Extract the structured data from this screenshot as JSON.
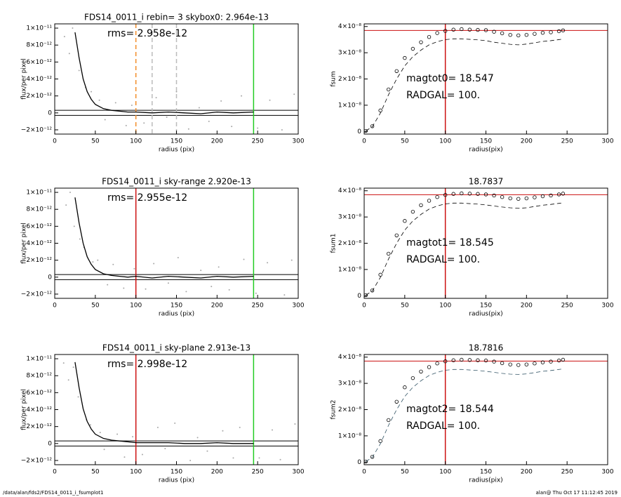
{
  "chart_data": [
    {
      "type": "scatter",
      "title": "FDS14_0011_i rebin= 3    skybox0:  2.964e-13",
      "annotations": [
        "rms= 2.958e-12"
      ],
      "xlabel": "radius (pix)",
      "ylabel": "flux/per pixel",
      "xlim": [
        0,
        300
      ],
      "xticks": [
        0,
        50,
        100,
        150,
        200,
        250,
        300
      ],
      "ylim": [
        -2.5e-12,
        1.05e-11
      ],
      "yticks": [
        {
          "value": -2e-12,
          "label": "−2×10⁻¹²"
        },
        0,
        {
          "value": 2e-12,
          "label": "2×10⁻¹²"
        },
        {
          "value": 4e-12,
          "label": "4×10⁻¹²"
        },
        {
          "value": 6e-12,
          "label": "6×10⁻¹²"
        },
        {
          "value": 8e-12,
          "label": "8×10⁻¹²"
        },
        {
          "value": 1e-11,
          "label": "1×10⁻¹¹"
        }
      ],
      "points": {
        "color": "#a8a8a8",
        "x": [
          12,
          18,
          22,
          30,
          38,
          45,
          55,
          62,
          75,
          88,
          95,
          110,
          125,
          138,
          150,
          165,
          178,
          190,
          205,
          218,
          230,
          250,
          265,
          280,
          295
        ],
        "y": [
          9e-12,
          7e-12,
          1e-11,
          5e-12,
          3e-12,
          2.5e-12,
          1.5e-12,
          -8e-13,
          1.2e-12,
          -1.5e-12,
          9e-13,
          -1.2e-12,
          1.8e-12,
          -5e-13,
          2.5e-12,
          -1.9e-12,
          6e-13,
          -1e-12,
          1.4e-12,
          -1.6e-12,
          2e-12,
          -1.8e-12,
          1.5e-12,
          -2e-12,
          2.2e-12
        ]
      },
      "series": [
        {
          "color": "#000000",
          "x": [
            25,
            30,
            35,
            40,
            45,
            50,
            60,
            70,
            80,
            90,
            100,
            120,
            140,
            160,
            180,
            200,
            220,
            245
          ],
          "values": [
            9.5e-12,
            6.5e-12,
            4e-12,
            2.5e-12,
            1.6e-12,
            1e-12,
            5e-13,
            3e-13,
            2e-13,
            1e-13,
            1e-13,
            0,
            1e-13,
            0,
            -1e-13,
            1e-13,
            0,
            1e-13
          ]
        }
      ],
      "vlines": [
        {
          "x": 100,
          "color": "#f28c28",
          "dash": true
        },
        {
          "x": 120,
          "color": "#bbbbbb",
          "dash": true
        },
        {
          "x": 150,
          "color": "#bbbbbb",
          "dash": true
        },
        {
          "x": 245,
          "color": "#22cc22"
        }
      ],
      "hlines": [
        {
          "y": 3e-13,
          "color": "#000000"
        },
        {
          "y": -3e-13,
          "color": "#000000"
        }
      ]
    },
    {
      "type": "line",
      "annotations": [
        "magtot0= 18.547",
        "RADGAL=    100."
      ],
      "xlabel": "radius(pix)",
      "ylabel": "fsum",
      "xlim": [
        0,
        300
      ],
      "xticks": [
        0,
        50,
        100,
        150,
        200,
        250,
        300
      ],
      "ylim": [
        -1e-09,
        4.1e-08
      ],
      "yticks": [
        0,
        {
          "value": 1e-08,
          "label": "1×10⁻⁸"
        },
        {
          "value": 2e-08,
          "label": "2×10⁻⁸"
        },
        {
          "value": 3e-08,
          "label": "3×10⁻⁸"
        },
        {
          "value": 4e-08,
          "label": "4×10⁻⁸"
        }
      ],
      "series": [
        {
          "color": "#000000",
          "marker": "circle",
          "x": [
            2,
            10,
            20,
            30,
            40,
            50,
            60,
            70,
            80,
            90,
            100,
            110,
            120,
            130,
            140,
            150,
            160,
            170,
            180,
            190,
            200,
            210,
            220,
            230,
            240,
            245
          ],
          "values": [
            2e-10,
            2e-09,
            8e-09,
            1.6e-08,
            2.3e-08,
            2.8e-08,
            3.15e-08,
            3.4e-08,
            3.6e-08,
            3.75e-08,
            3.83e-08,
            3.88e-08,
            3.9e-08,
            3.88e-08,
            3.87e-08,
            3.86e-08,
            3.8e-08,
            3.74e-08,
            3.68e-08,
            3.66e-08,
            3.68e-08,
            3.72e-08,
            3.76e-08,
            3.78e-08,
            3.82e-08,
            3.85e-08
          ]
        },
        {
          "color": "#000000",
          "dash": true,
          "x": [
            2,
            10,
            20,
            30,
            40,
            50,
            60,
            70,
            80,
            90,
            100,
            110,
            120,
            130,
            140,
            150,
            160,
            170,
            180,
            190,
            200,
            210,
            220,
            230,
            240,
            245
          ],
          "values": [
            2e-10,
            1.8e-09,
            7e-09,
            1.4e-08,
            2e-08,
            2.5e-08,
            2.85e-08,
            3.1e-08,
            3.3e-08,
            3.42e-08,
            3.5e-08,
            3.53e-08,
            3.53e-08,
            3.51e-08,
            3.49e-08,
            3.46e-08,
            3.4e-08,
            3.36e-08,
            3.32e-08,
            3.3e-08,
            3.33e-08,
            3.38e-08,
            3.43e-08,
            3.46e-08,
            3.5e-08,
            3.52e-08
          ]
        }
      ],
      "vlines": [
        {
          "x": 100,
          "color": "#cc1111"
        }
      ],
      "hlines": [
        {
          "y": 3.85e-08,
          "color": "#cc1111"
        }
      ]
    },
    {
      "type": "scatter",
      "title": "FDS14_0011_i sky-range  2.920e-13",
      "annotations": [
        "rms= 2.955e-12"
      ],
      "xlabel": "radius (pix)",
      "ylabel": "flux/per pixel",
      "xlim": [
        0,
        300
      ],
      "xticks": [
        0,
        50,
        100,
        150,
        200,
        250,
        300
      ],
      "ylim": [
        -2.5e-12,
        1.05e-11
      ],
      "yticks": [
        {
          "value": -2e-12,
          "label": "−2×10⁻¹²"
        },
        0,
        {
          "value": 2e-12,
          "label": "2×10⁻¹²"
        },
        {
          "value": 4e-12,
          "label": "4×10⁻¹²"
        },
        {
          "value": 6e-12,
          "label": "6×10⁻¹²"
        },
        {
          "value": 8e-12,
          "label": "8×10⁻¹²"
        },
        {
          "value": 1e-11,
          "label": "1×10⁻¹¹"
        }
      ],
      "points": {
        "color": "#a8a8a8",
        "x": [
          14,
          19,
          24,
          31,
          36,
          47,
          53,
          65,
          72,
          85,
          98,
          112,
          122,
          140,
          152,
          162,
          180,
          193,
          202,
          215,
          233,
          248,
          262,
          283,
          292
        ],
        "y": [
          8.5e-12,
          1e-11,
          6e-12,
          4.5e-12,
          3.5e-12,
          1.8e-12,
          2e-12,
          -9e-13,
          1.5e-12,
          -1.3e-12,
          1e-12,
          -1.4e-12,
          1.6e-12,
          -7e-13,
          2.3e-12,
          -1.7e-12,
          8e-13,
          -1.1e-12,
          1.2e-12,
          -1.5e-12,
          2.1e-12,
          -1.9e-12,
          1.7e-12,
          -2.1e-12,
          2e-12
        ]
      },
      "series": [
        {
          "color": "#000000",
          "x": [
            25,
            30,
            35,
            40,
            45,
            50,
            60,
            70,
            80,
            90,
            100,
            120,
            140,
            160,
            180,
            200,
            220,
            245
          ],
          "values": [
            9.4e-12,
            6.4e-12,
            4e-12,
            2.4e-12,
            1.5e-12,
            9e-13,
            4e-13,
            2e-13,
            1e-13,
            0,
            1e-13,
            -1e-13,
            1e-13,
            0,
            -1e-13,
            1e-13,
            0,
            1e-13
          ]
        }
      ],
      "vlines": [
        {
          "x": 100,
          "color": "#cc1111"
        },
        {
          "x": 245,
          "color": "#22cc22"
        }
      ],
      "hlines": [
        {
          "y": 3e-13,
          "color": "#000000"
        },
        {
          "y": -3e-13,
          "color": "#000000"
        }
      ]
    },
    {
      "type": "line",
      "title": "18.7837",
      "annotations": [
        "magtot1= 18.545",
        "RADGAL=    100."
      ],
      "xlabel": "radius(pix)",
      "ylabel": "fsum1",
      "xlim": [
        0,
        300
      ],
      "xticks": [
        0,
        50,
        100,
        150,
        200,
        250,
        300
      ],
      "ylim": [
        -1e-09,
        4.1e-08
      ],
      "yticks": [
        0,
        {
          "value": 1e-08,
          "label": "1×10⁻⁸"
        },
        {
          "value": 2e-08,
          "label": "2×10⁻⁸"
        },
        {
          "value": 3e-08,
          "label": "3×10⁻⁸"
        },
        {
          "value": 4e-08,
          "label": "4×10⁻⁸"
        }
      ],
      "series": [
        {
          "color": "#000000",
          "marker": "circle",
          "x": [
            2,
            10,
            20,
            30,
            40,
            50,
            60,
            70,
            80,
            90,
            100,
            110,
            120,
            130,
            140,
            150,
            160,
            170,
            180,
            190,
            200,
            210,
            220,
            230,
            240,
            245
          ],
          "values": [
            2e-10,
            2e-09,
            8e-09,
            1.6e-08,
            2.3e-08,
            2.85e-08,
            3.2e-08,
            3.45e-08,
            3.62e-08,
            3.76e-08,
            3.84e-08,
            3.88e-08,
            3.9e-08,
            3.89e-08,
            3.88e-08,
            3.86e-08,
            3.82e-08,
            3.76e-08,
            3.71e-08,
            3.69e-08,
            3.71e-08,
            3.75e-08,
            3.79e-08,
            3.82e-08,
            3.86e-08,
            3.89e-08
          ]
        },
        {
          "color": "#000000",
          "dash": true,
          "x": [
            2,
            10,
            20,
            30,
            40,
            50,
            60,
            70,
            80,
            90,
            100,
            110,
            120,
            130,
            140,
            150,
            160,
            170,
            180,
            190,
            200,
            210,
            220,
            230,
            240,
            245
          ],
          "values": [
            2e-10,
            1.8e-09,
            7e-09,
            1.4e-08,
            2e-08,
            2.5e-08,
            2.85e-08,
            3.1e-08,
            3.3e-08,
            3.42e-08,
            3.5e-08,
            3.53e-08,
            3.53e-08,
            3.51e-08,
            3.49e-08,
            3.46e-08,
            3.42e-08,
            3.38e-08,
            3.35e-08,
            3.33e-08,
            3.35e-08,
            3.4e-08,
            3.45e-08,
            3.48e-08,
            3.52e-08,
            3.54e-08
          ]
        }
      ],
      "vlines": [
        {
          "x": 100,
          "color": "#cc1111"
        }
      ],
      "hlines": [
        {
          "y": 3.85e-08,
          "color": "#cc1111"
        }
      ]
    },
    {
      "type": "scatter",
      "title": "FDS14_0011_i sky-plane 2.913e-13",
      "annotations": [
        "rms= 2.998e-12"
      ],
      "xlabel": "radius (pix)",
      "ylabel": "flux/per pixel",
      "xlim": [
        0,
        300
      ],
      "xticks": [
        0,
        50,
        100,
        150,
        200,
        250,
        300
      ],
      "ylim": [
        -2.5e-12,
        1.05e-11
      ],
      "yticks": [
        {
          "value": -2e-12,
          "label": "−2×10⁻¹²"
        },
        0,
        {
          "value": 2e-12,
          "label": "2×10⁻¹²"
        },
        {
          "value": 4e-12,
          "label": "4×10⁻¹²"
        },
        {
          "value": 6e-12,
          "label": "6×10⁻¹²"
        },
        {
          "value": 8e-12,
          "label": "8×10⁻¹²"
        },
        {
          "value": 1e-11,
          "label": "1×10⁻¹¹"
        }
      ],
      "points": {
        "color": "#a8a8a8",
        "x": [
          11,
          17,
          23,
          29,
          39,
          44,
          56,
          61,
          77,
          86,
          96,
          108,
          127,
          136,
          148,
          167,
          176,
          188,
          207,
          220,
          228,
          252,
          268,
          278,
          296
        ],
        "y": [
          9.5e-12,
          7.5e-12,
          9e-12,
          5.5e-12,
          2.8e-12,
          2.2e-12,
          1.3e-12,
          -7e-13,
          1.1e-12,
          -1.6e-12,
          8e-13,
          -1.3e-12,
          1.9e-12,
          -6e-13,
          2.4e-12,
          -2e-12,
          7e-13,
          -9e-13,
          1.5e-12,
          -1.7e-12,
          1.9e-12,
          -1.7e-12,
          1.6e-12,
          -1.9e-12,
          2.3e-12
        ]
      },
      "series": [
        {
          "color": "#000000",
          "x": [
            25,
            30,
            35,
            40,
            45,
            50,
            60,
            70,
            80,
            90,
            100,
            120,
            140,
            160,
            180,
            200,
            220,
            245
          ],
          "values": [
            9.6e-12,
            6.6e-12,
            4.1e-12,
            2.6e-12,
            1.7e-12,
            1.1e-12,
            6e-13,
            4e-13,
            3e-13,
            2e-13,
            1e-13,
            1e-13,
            1e-13,
            0,
            0,
            1e-13,
            0,
            0
          ]
        }
      ],
      "vlines": [
        {
          "x": 100,
          "color": "#cc1111"
        },
        {
          "x": 245,
          "color": "#22cc22"
        }
      ],
      "hlines": [
        {
          "y": 3e-13,
          "color": "#000000"
        },
        {
          "y": -3e-13,
          "color": "#000000"
        }
      ]
    },
    {
      "type": "line",
      "title": "18.7816",
      "annotations": [
        "magtot2= 18.544",
        "RADGAL=    100."
      ],
      "xlabel": "radius(pix)",
      "ylabel": "fsum2",
      "xlim": [
        0,
        300
      ],
      "xticks": [
        0,
        50,
        100,
        150,
        200,
        250,
        300
      ],
      "ylim": [
        -1e-09,
        4.1e-08
      ],
      "yticks": [
        0,
        {
          "value": 1e-08,
          "label": "1×10⁻⁸"
        },
        {
          "value": 2e-08,
          "label": "2×10⁻⁸"
        },
        {
          "value": 3e-08,
          "label": "3×10⁻⁸"
        },
        {
          "value": 4e-08,
          "label": "4×10⁻⁸"
        }
      ],
      "series": [
        {
          "color": "#000000",
          "marker": "circle",
          "x": [
            2,
            10,
            20,
            30,
            40,
            50,
            60,
            70,
            80,
            90,
            100,
            110,
            120,
            130,
            140,
            150,
            160,
            170,
            180,
            190,
            200,
            210,
            220,
            230,
            240,
            245
          ],
          "values": [
            2e-10,
            2e-09,
            8e-09,
            1.6e-08,
            2.3e-08,
            2.85e-08,
            3.2e-08,
            3.45e-08,
            3.62e-08,
            3.76e-08,
            3.84e-08,
            3.88e-08,
            3.9e-08,
            3.89e-08,
            3.88e-08,
            3.87e-08,
            3.83e-08,
            3.77e-08,
            3.72e-08,
            3.7e-08,
            3.72e-08,
            3.76e-08,
            3.8e-08,
            3.83e-08,
            3.87e-08,
            3.9e-08
          ]
        },
        {
          "color": "#335566",
          "dash": true,
          "x": [
            2,
            10,
            20,
            30,
            40,
            50,
            60,
            70,
            80,
            90,
            100,
            110,
            120,
            130,
            140,
            150,
            160,
            170,
            180,
            190,
            200,
            210,
            220,
            230,
            240,
            245
          ],
          "values": [
            2e-10,
            1.8e-09,
            7e-09,
            1.4e-08,
            2e-08,
            2.5e-08,
            2.85e-08,
            3.1e-08,
            3.3e-08,
            3.42e-08,
            3.5e-08,
            3.53e-08,
            3.53e-08,
            3.51e-08,
            3.49e-08,
            3.46e-08,
            3.42e-08,
            3.38e-08,
            3.35e-08,
            3.34e-08,
            3.36e-08,
            3.41e-08,
            3.46e-08,
            3.49e-08,
            3.53e-08,
            3.55e-08
          ]
        }
      ],
      "vlines": [
        {
          "x": 100,
          "color": "#cc1111"
        }
      ],
      "hlines": [
        {
          "y": 3.85e-08,
          "color": "#cc1111"
        }
      ]
    }
  ],
  "footer": {
    "left": "/data/alan/fds2/FDS14_0011_i_fsumplot1",
    "right": "alan@  Thu Oct 17 11:12:45 2019"
  }
}
